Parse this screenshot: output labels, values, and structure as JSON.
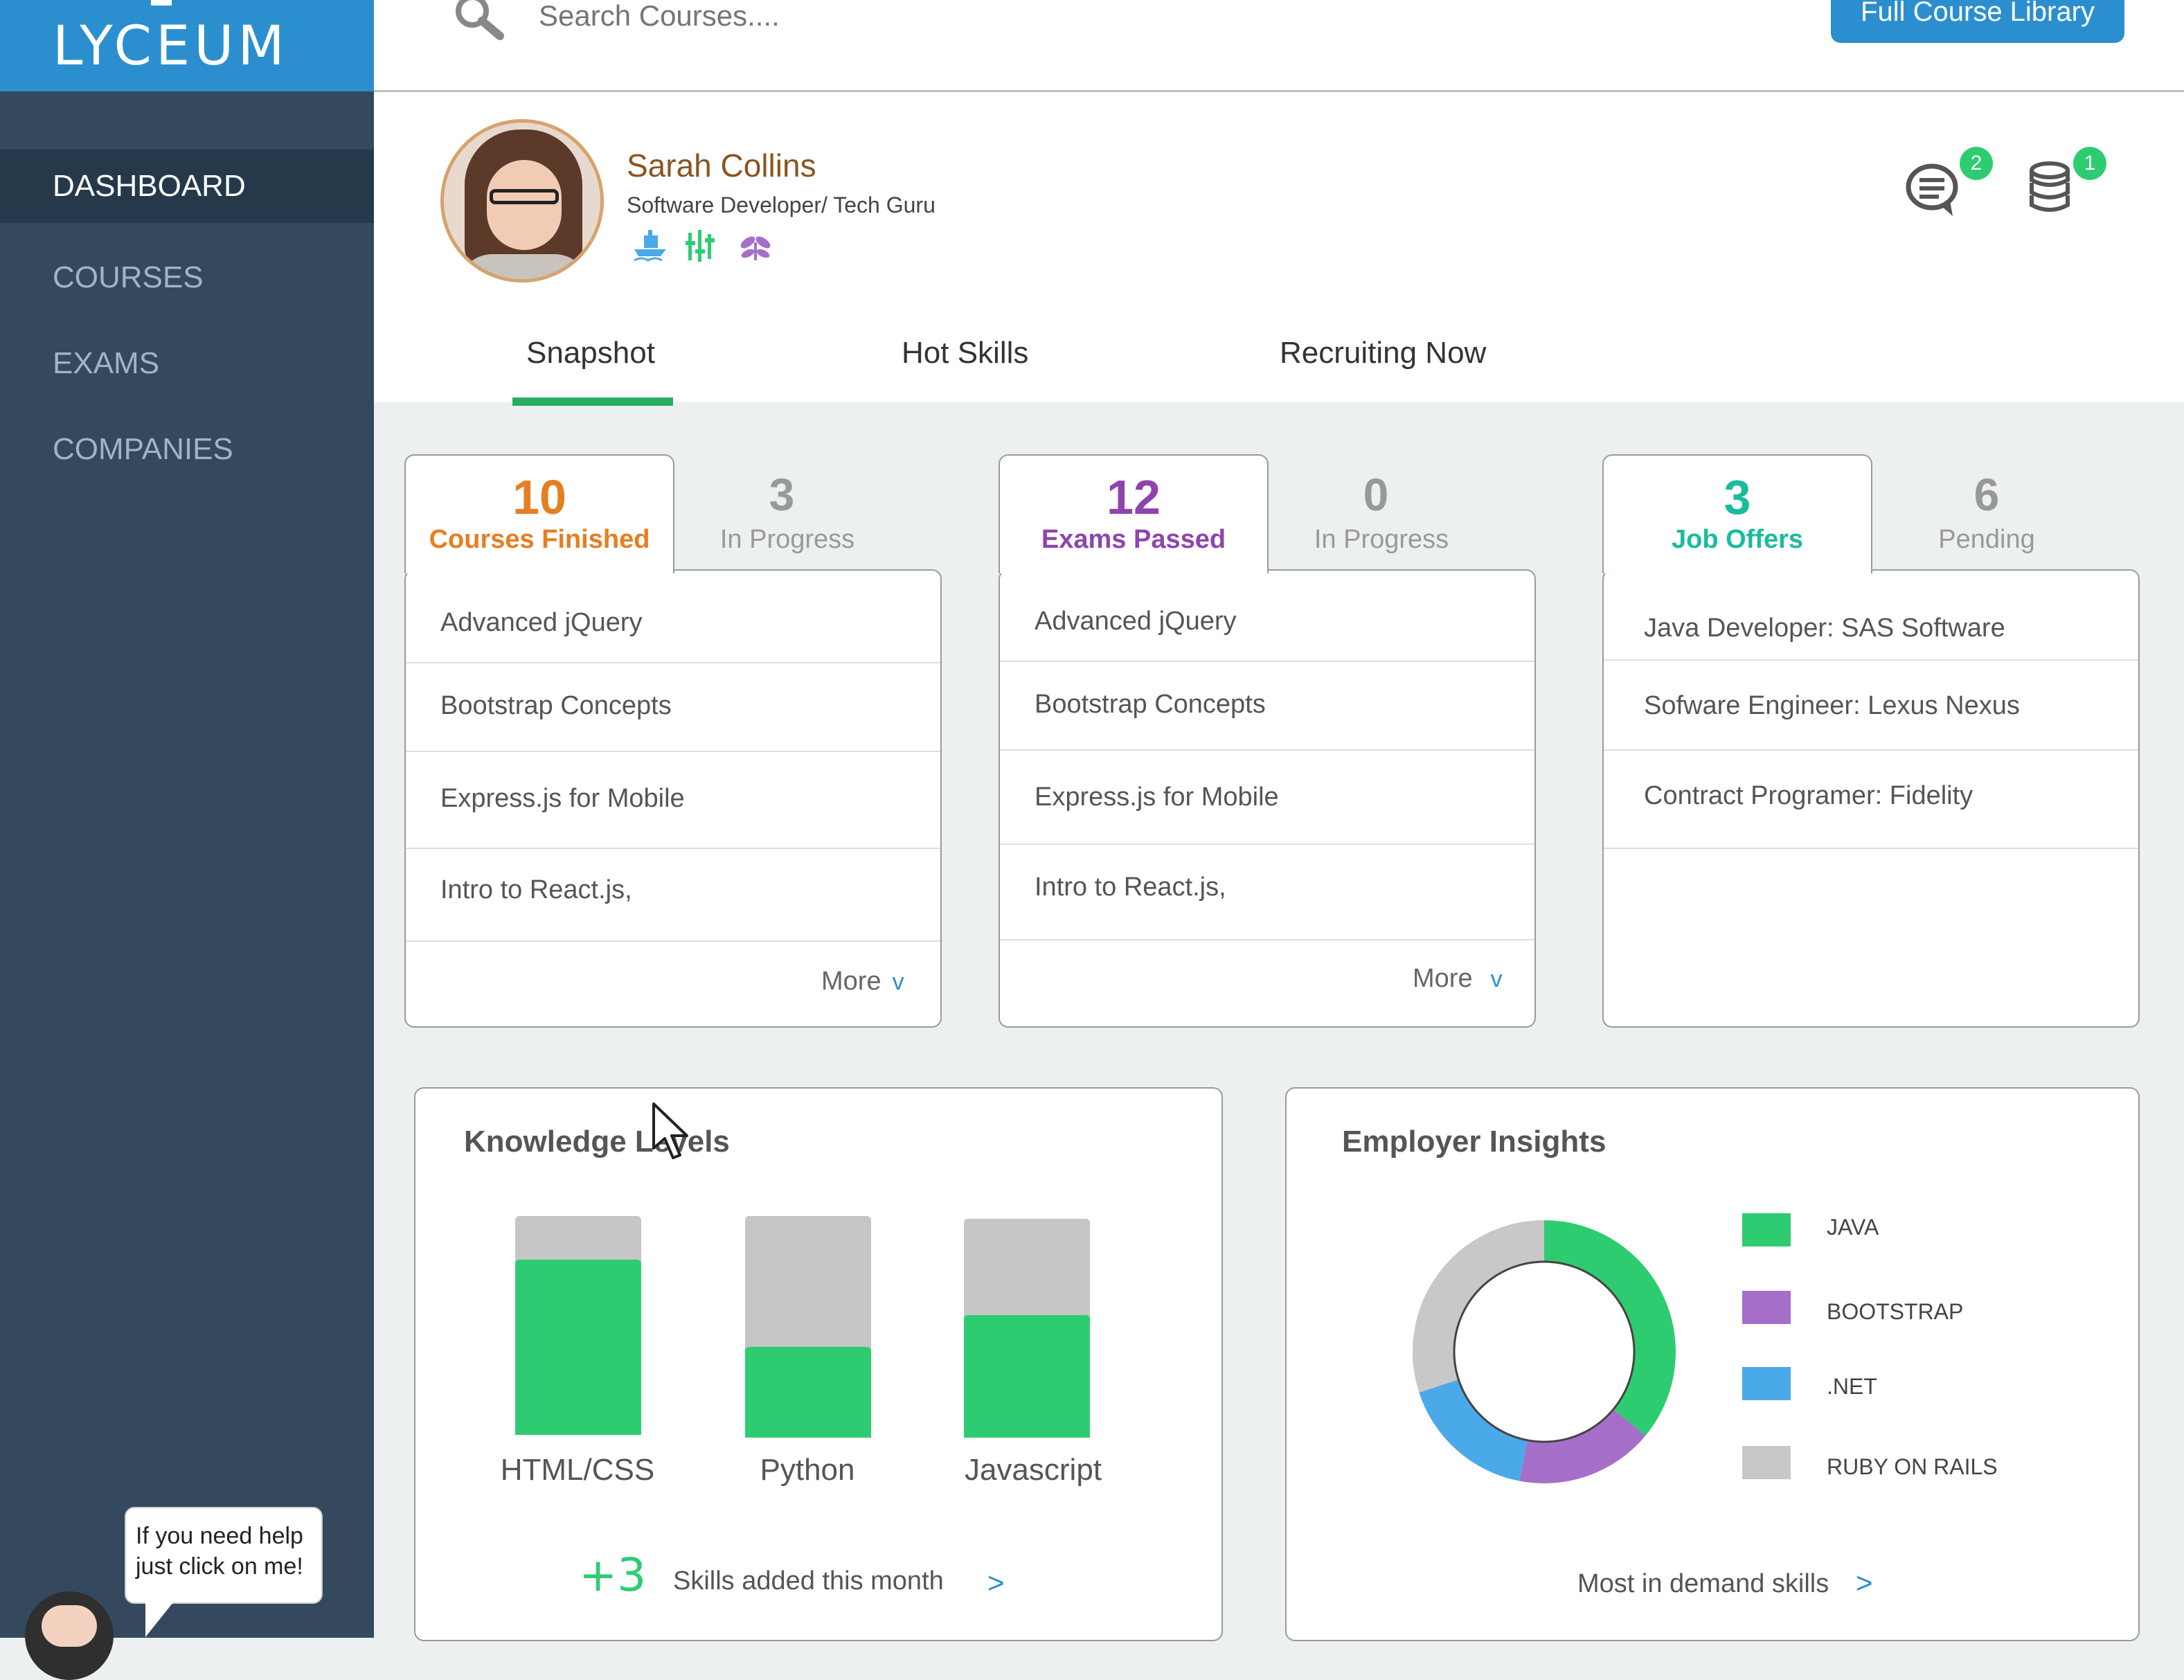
{
  "app": {
    "logo": "LYCEUM"
  },
  "sidebar": {
    "items": [
      {
        "label": "DASHBOARD",
        "active": true
      },
      {
        "label": "COURSES",
        "active": false
      },
      {
        "label": "EXAMS",
        "active": false
      },
      {
        "label": "COMPANIES",
        "active": false
      }
    ]
  },
  "help": {
    "line1": "If you need help",
    "line2": "just click on me!"
  },
  "topbar": {
    "search_placeholder": "Search Courses....",
    "library_button": "Full Course Library"
  },
  "profile": {
    "name": "Sarah Collins",
    "title": "Software Developer/ Tech Guru",
    "badges": [
      "ship-icon",
      "bars-icon",
      "leaf-icon"
    ],
    "notifications": {
      "messages": "2",
      "coins": "1"
    }
  },
  "tabs": [
    {
      "label": "Snapshot",
      "active": true
    },
    {
      "label": "Hot Skills",
      "active": false
    },
    {
      "label": "Recruiting Now",
      "active": false
    }
  ],
  "cards": {
    "courses": {
      "primary_value": "10",
      "primary_label": "Courses Finished",
      "primary_color": "#e67e22",
      "secondary_value": "3",
      "secondary_label": "In Progress",
      "items": [
        "Advanced jQuery",
        "Bootstrap Concepts",
        "Express.js for Mobile",
        "Intro to React.js,"
      ],
      "more": "More"
    },
    "exams": {
      "primary_value": "12",
      "primary_label": "Exams Passed",
      "primary_color": "#8e44ad",
      "secondary_value": "0",
      "secondary_label": "In Progress",
      "items": [
        "Advanced jQuery",
        "Bootstrap Concepts",
        "Express.js for Mobile",
        "Intro to React.js,"
      ],
      "more": "More"
    },
    "jobs": {
      "primary_value": "3",
      "primary_label": "Job Offers",
      "primary_color": "#1abc9c",
      "secondary_value": "6",
      "secondary_label": "Pending",
      "items": [
        "Java Developer: SAS Software",
        "Sofware Engineer: Lexus Nexus",
        "Contract Programer: Fidelity"
      ]
    }
  },
  "knowledge": {
    "title": "Knowledge Levels",
    "footer_value": "+3",
    "footer_text": "Skills added this month",
    "footer_link": ">"
  },
  "insights": {
    "title": "Employer Insights",
    "footer_text": "Most in demand skills",
    "footer_link": ">"
  },
  "chart_data": [
    {
      "type": "bar",
      "title": "Knowledge Levels",
      "categories": [
        "HTML/CSS",
        "Python",
        "Javascript"
      ],
      "values": [
        0.8,
        0.41,
        0.56
      ],
      "ylim": [
        0,
        1
      ],
      "colors": {
        "fill": "#2ecc71",
        "track": "#c6c6c6"
      }
    },
    {
      "type": "pie",
      "title": "Employer Insights",
      "labels": [
        "JAVA",
        "BOOTSTRAP",
        ".NET",
        "RUBY ON RAILS"
      ],
      "values": [
        36,
        17,
        17,
        30
      ],
      "colors": [
        "#2ecc71",
        "#a56fc9",
        "#4aa9e9",
        "#c8c8c8"
      ],
      "legend": "right"
    }
  ]
}
